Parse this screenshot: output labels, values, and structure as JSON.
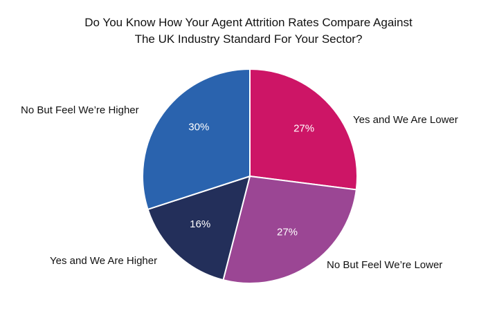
{
  "chart_data": {
    "type": "pie",
    "title_lines": [
      "Do You Know How Your Agent Attrition Rates Compare Against",
      "The UK Industry Standard For Your Sector?"
    ],
    "slices": [
      {
        "label": "Yes and We Are Lower",
        "value": 27,
        "display": "27%",
        "color": "#cd1566"
      },
      {
        "label": "No But Feel We’re Lower",
        "value": 27,
        "display": "27%",
        "color": "#9b4694"
      },
      {
        "label": "Yes and We Are Higher",
        "value": 16,
        "display": "16%",
        "color": "#232f5a"
      },
      {
        "label": "No But Feel We’re Higher",
        "value": 30,
        "display": "30%",
        "color": "#2a63ae"
      }
    ],
    "start_angle": "12 o'clock",
    "direction": "clockwise",
    "legend": "none"
  }
}
